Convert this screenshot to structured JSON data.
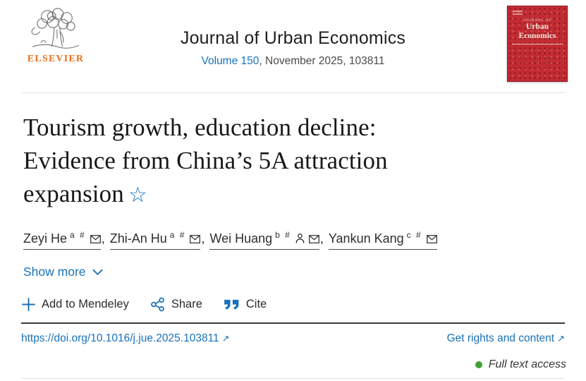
{
  "header": {
    "elsevier_wordmark": "ELSEVIER",
    "journal_title": "Journal of Urban Economics",
    "volume_link": "Volume 150",
    "issue_info": ", November 2025, 103811",
    "cover": {
      "kicker": "JOURNAL OF",
      "title_line1": "Urban",
      "title_line2": "Economics"
    }
  },
  "article": {
    "title_lines": [
      "Tourism growth, education decline:",
      "Evidence from China’s 5A attraction",
      "expansion"
    ],
    "footnote_star": "☆",
    "authors": [
      {
        "name": "Zeyi He",
        "sup": "a #",
        "icons": [
          "envelope-icon"
        ]
      },
      {
        "name": "Zhi-An Hu",
        "sup": "a #",
        "icons": [
          "envelope-icon"
        ]
      },
      {
        "name": "Wei Huang",
        "sup": "b #",
        "icons": [
          "person-icon",
          "envelope-icon"
        ]
      },
      {
        "name": "Yankun Kang",
        "sup": "c #",
        "icons": [
          "envelope-icon"
        ]
      }
    ],
    "show_more_label": "Show more"
  },
  "actions": {
    "mendeley_label": "Add to Mendeley",
    "share_label": "Share",
    "cite_label": "Cite"
  },
  "links": {
    "doi": "https://doi.org/10.1016/j.jue.2025.103811",
    "rights_label": "Get rights and content",
    "external_arrow": "↗"
  },
  "access": {
    "label": "Full text access"
  },
  "colors": {
    "link_blue": "#1a72ba",
    "elsevier_orange": "#e9711c",
    "cover_red": "#c32b33",
    "access_green": "#3fa235"
  }
}
